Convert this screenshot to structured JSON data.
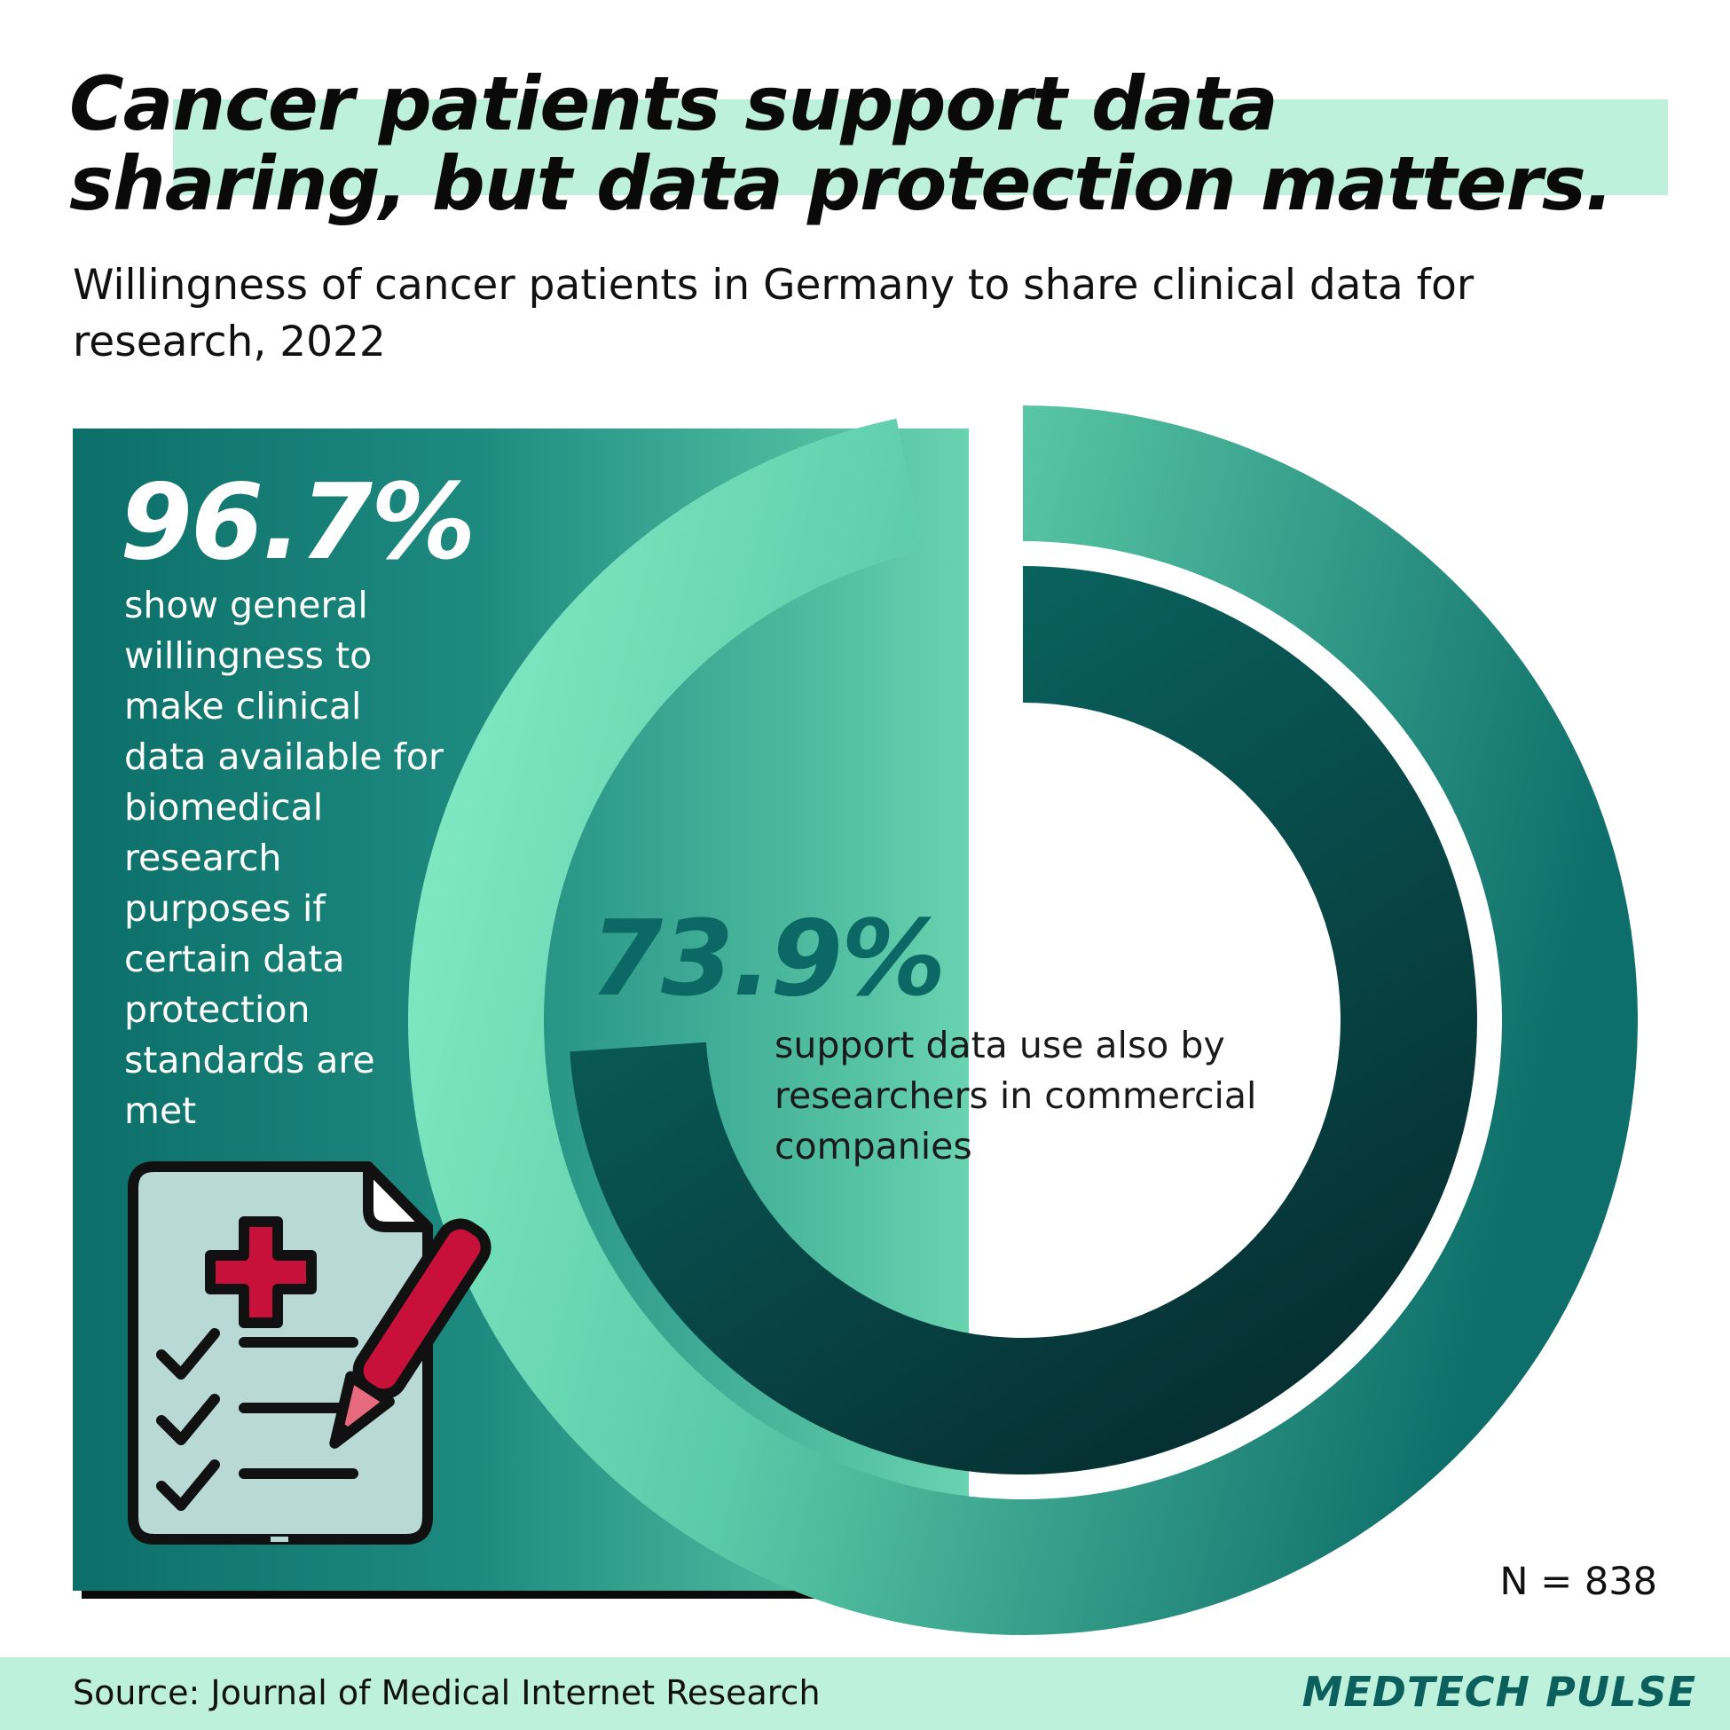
{
  "title": "Cancer patients support data\nsharing, but data protection matters.",
  "subtitle": "Willingness of cancer patients in Germany to share clinical data for research, 2022",
  "chart_data": {
    "type": "pie",
    "series": [
      {
        "name": "",
        "value_label": "96.7%",
        "value": 96.7,
        "description": "show general willingness to make clinical data available for biomedical research purposes if certain data protection standards are met"
      },
      {
        "name": "",
        "value_label": "73.9%",
        "value": 73.9,
        "description": "support data use also by researchers in commercial companies"
      }
    ],
    "sample": "N = 838"
  },
  "footer": {
    "source": "Source: Journal of Medical Internet Research",
    "brand": "MEDTECH PULSE"
  },
  "colors": {
    "outer_ring_start": "#88f0c8",
    "outer_ring_end": "#0e6f6a",
    "inner_ring_start": "#0a6b66",
    "inner_ring_end": "#06292c",
    "highlight": "#bdf1dc",
    "accent_red": "#c8113a"
  },
  "icons": {
    "clipboard": "medical-clipboard-icon"
  }
}
